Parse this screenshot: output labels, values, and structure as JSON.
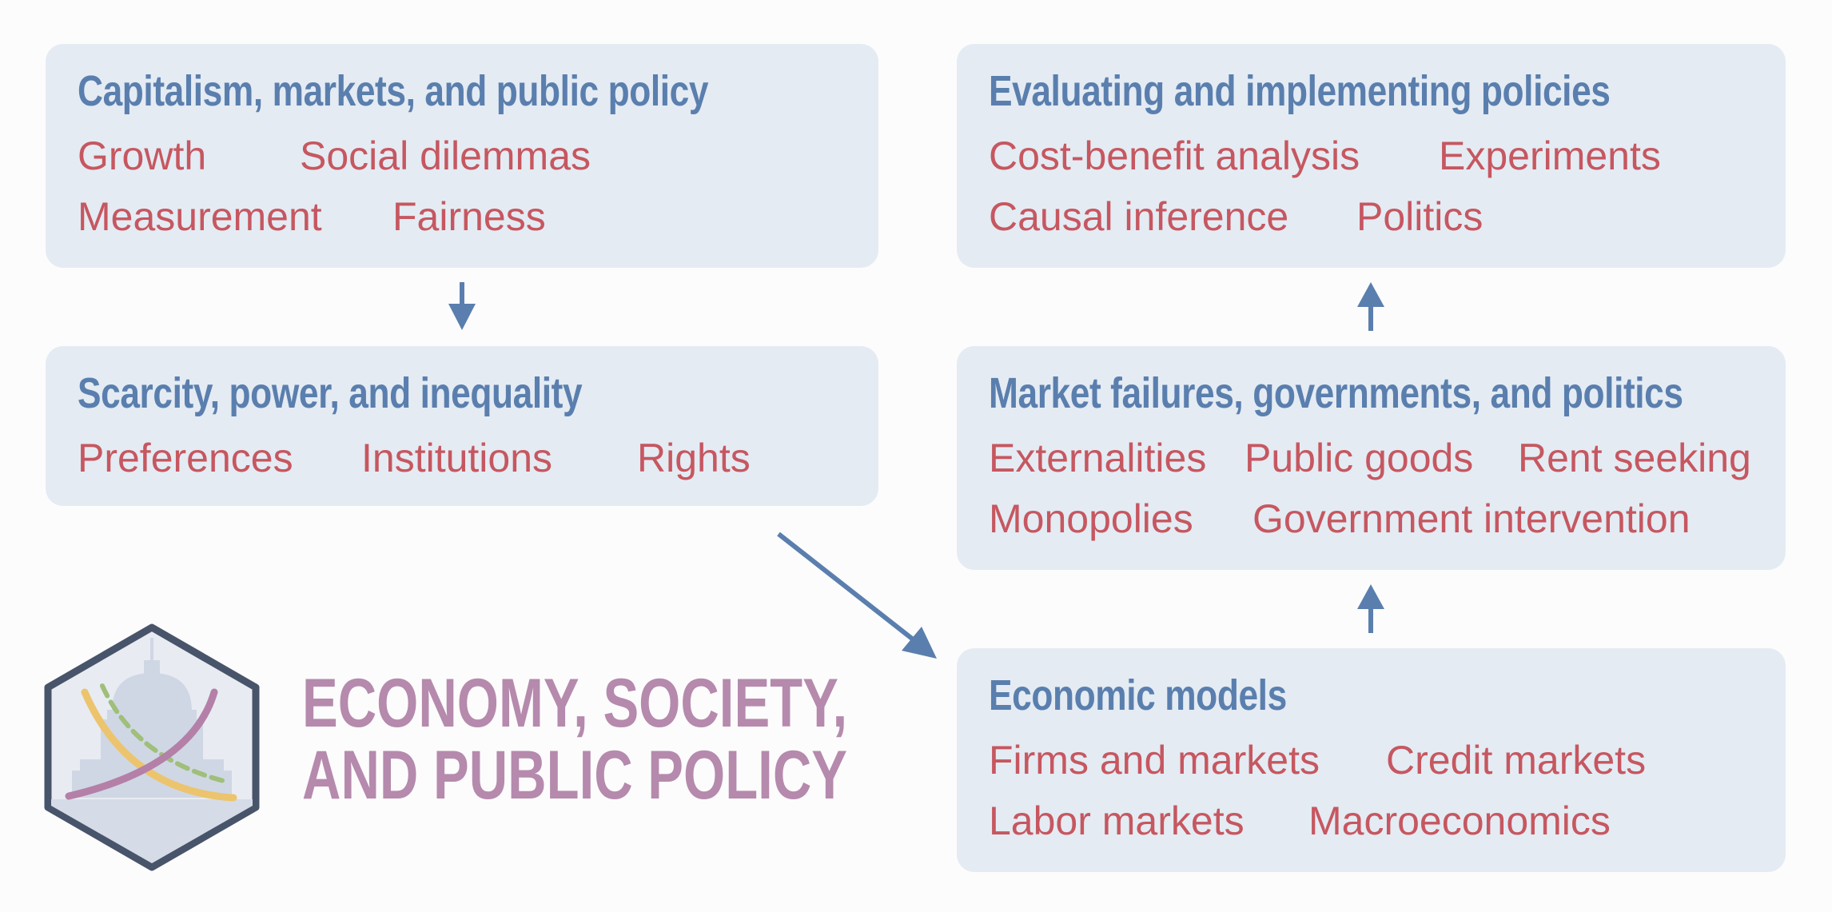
{
  "boxes": {
    "capitalism": {
      "title": "Capitalism, markets, and public policy",
      "topics": [
        "Growth",
        "Social dilemmas",
        "Measurement",
        "Fairness"
      ]
    },
    "scarcity": {
      "title": "Scarcity, power, and inequality",
      "topics": [
        "Preferences",
        "Institutions",
        "Rights"
      ]
    },
    "evaluating": {
      "title": "Evaluating and implementing policies",
      "topics": [
        "Cost-benefit analysis",
        "Experiments",
        "Causal inference",
        "Politics"
      ]
    },
    "market_failures": {
      "title": "Market failures, governments, and politics",
      "topics": [
        "Externalities",
        "Public goods",
        "Rent seeking",
        "Monopolies",
        "Government intervention"
      ]
    },
    "models": {
      "title": "Economic models",
      "topics": [
        "Firms and markets",
        "Credit markets",
        "Labor markets",
        "Macroeconomics"
      ]
    }
  },
  "logo": {
    "line1": "ECONOMY, SOCIETY,",
    "line2": "AND PUBLIC POLICY"
  },
  "colors": {
    "title": "#5a7fae",
    "topic": "#c65760",
    "box_bg": "#e4ebf3",
    "arrow": "#5a7fae",
    "logo_text": "#b58aad",
    "hex_border": "#4a5568"
  }
}
